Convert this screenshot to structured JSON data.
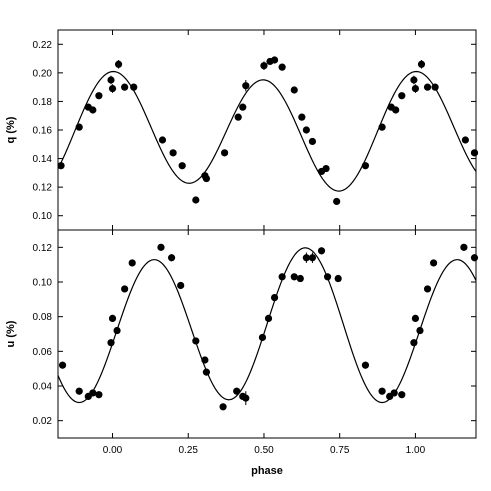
{
  "chart_data": [
    {
      "type": "scatter",
      "panel": "top",
      "ylabel": "q (%)",
      "xlim": [
        -0.18,
        1.2
      ],
      "ylim": [
        0.09,
        0.23
      ],
      "xticks": [
        0.0,
        0.25,
        0.5,
        0.75,
        1.0
      ],
      "yticks": [
        0.1,
        0.12,
        0.14,
        0.16,
        0.18,
        0.2,
        0.22
      ],
      "ytick_labels": [
        "0.10",
        "0.12",
        "0.14",
        "0.16",
        "0.18",
        "0.20",
        "0.22"
      ],
      "grid": false,
      "model": {
        "kind": "double-wave",
        "mean": 0.159,
        "a1": 0.004,
        "phi1": 0.12,
        "a2": 0.039,
        "phi2": 0.0
      },
      "series": [
        {
          "marker": "filled-circle",
          "error_bars": true,
          "points": [
            {
              "x": -0.17,
              "y": 0.135,
              "err": 0.002
            },
            {
              "x": -0.11,
              "y": 0.162,
              "err": 0.002
            },
            {
              "x": -0.08,
              "y": 0.176,
              "err": 0.002
            },
            {
              "x": -0.065,
              "y": 0.174,
              "err": 0.002
            },
            {
              "x": -0.045,
              "y": 0.184,
              "err": 0.002
            },
            {
              "x": -0.005,
              "y": 0.195,
              "err": 0.003
            },
            {
              "x": 0.0,
              "y": 0.189,
              "err": 0.003
            },
            {
              "x": 0.02,
              "y": 0.206,
              "err": 0.003
            },
            {
              "x": 0.04,
              "y": 0.19,
              "err": 0.002
            },
            {
              "x": 0.07,
              "y": 0.19,
              "err": 0.002
            },
            {
              "x": 0.165,
              "y": 0.153,
              "err": 0.002
            },
            {
              "x": 0.2,
              "y": 0.144,
              "err": 0.002
            },
            {
              "x": 0.23,
              "y": 0.135,
              "err": 0.002
            },
            {
              "x": 0.275,
              "y": 0.111,
              "err": 0.002
            },
            {
              "x": 0.305,
              "y": 0.128,
              "err": 0.002
            },
            {
              "x": 0.31,
              "y": 0.126,
              "err": 0.002
            },
            {
              "x": 0.37,
              "y": 0.144,
              "err": 0.002
            },
            {
              "x": 0.415,
              "y": 0.169,
              "err": 0.002
            },
            {
              "x": 0.43,
              "y": 0.176,
              "err": 0.002
            },
            {
              "x": 0.44,
              "y": 0.191,
              "err": 0.004
            },
            {
              "x": 0.5,
              "y": 0.205,
              "err": 0.003
            },
            {
              "x": 0.52,
              "y": 0.208,
              "err": 0.002
            },
            {
              "x": 0.535,
              "y": 0.209,
              "err": 0.002
            },
            {
              "x": 0.56,
              "y": 0.204,
              "err": 0.002
            },
            {
              "x": 0.6,
              "y": 0.188,
              "err": 0.002
            },
            {
              "x": 0.625,
              "y": 0.169,
              "err": 0.002
            },
            {
              "x": 0.64,
              "y": 0.16,
              "err": 0.002
            },
            {
              "x": 0.66,
              "y": 0.152,
              "err": 0.002
            },
            {
              "x": 0.69,
              "y": 0.131,
              "err": 0.002
            },
            {
              "x": 0.705,
              "y": 0.133,
              "err": 0.002
            },
            {
              "x": 0.74,
              "y": 0.11,
              "err": 0.002
            },
            {
              "x": 0.835,
              "y": 0.135,
              "err": 0.002
            },
            {
              "x": 0.89,
              "y": 0.162,
              "err": 0.002
            },
            {
              "x": 0.92,
              "y": 0.176,
              "err": 0.002
            },
            {
              "x": 0.935,
              "y": 0.174,
              "err": 0.002
            },
            {
              "x": 0.955,
              "y": 0.184,
              "err": 0.002
            },
            {
              "x": 0.995,
              "y": 0.195,
              "err": 0.003
            },
            {
              "x": 1.0,
              "y": 0.189,
              "err": 0.003
            },
            {
              "x": 1.02,
              "y": 0.206,
              "err": 0.003
            },
            {
              "x": 1.04,
              "y": 0.19,
              "err": 0.002
            },
            {
              "x": 1.065,
              "y": 0.19,
              "err": 0.002
            },
            {
              "x": 1.165,
              "y": 0.153,
              "err": 0.002
            },
            {
              "x": 1.195,
              "y": 0.144,
              "err": 0.002
            }
          ]
        }
      ]
    },
    {
      "type": "scatter",
      "panel": "bottom",
      "xlabel": "phase",
      "ylabel": "u (%)",
      "xlim": [
        -0.18,
        1.2
      ],
      "ylim": [
        0.01,
        0.13
      ],
      "xticks": [
        0.0,
        0.25,
        0.5,
        0.75,
        1.0
      ],
      "xtick_labels": [
        "0.00",
        "0.25",
        "0.50",
        "0.75",
        "1.00"
      ],
      "yticks": [
        0.02,
        0.04,
        0.06,
        0.08,
        0.1,
        0.12
      ],
      "ytick_labels": [
        "0.02",
        "0.04",
        "0.06",
        "0.08",
        "0.10",
        "0.12"
      ],
      "grid": false,
      "model": {
        "kind": "double-wave",
        "mean": 0.0738,
        "a1": 0.0035,
        "phi1": 0.6,
        "a2": 0.0425,
        "phi2": 0.137
      },
      "series": [
        {
          "marker": "filled-circle",
          "error_bars": true,
          "points": [
            {
              "x": -0.165,
              "y": 0.052,
              "err": 0.002
            },
            {
              "x": -0.11,
              "y": 0.037,
              "err": 0.002
            },
            {
              "x": -0.08,
              "y": 0.034,
              "err": 0.002
            },
            {
              "x": -0.065,
              "y": 0.036,
              "err": 0.002
            },
            {
              "x": -0.045,
              "y": 0.035,
              "err": 0.002
            },
            {
              "x": -0.005,
              "y": 0.065,
              "err": 0.002
            },
            {
              "x": 0.0,
              "y": 0.079,
              "err": 0.002
            },
            {
              "x": 0.015,
              "y": 0.072,
              "err": 0.002
            },
            {
              "x": 0.04,
              "y": 0.096,
              "err": 0.002
            },
            {
              "x": 0.065,
              "y": 0.111,
              "err": 0.002
            },
            {
              "x": 0.16,
              "y": 0.12,
              "err": 0.002
            },
            {
              "x": 0.195,
              "y": 0.114,
              "err": 0.002
            },
            {
              "x": 0.225,
              "y": 0.098,
              "err": 0.002
            },
            {
              "x": 0.275,
              "y": 0.066,
              "err": 0.002
            },
            {
              "x": 0.305,
              "y": 0.055,
              "err": 0.002
            },
            {
              "x": 0.31,
              "y": 0.048,
              "err": 0.002
            },
            {
              "x": 0.365,
              "y": 0.028,
              "err": 0.002
            },
            {
              "x": 0.41,
              "y": 0.037,
              "err": 0.002
            },
            {
              "x": 0.43,
              "y": 0.034,
              "err": 0.002
            },
            {
              "x": 0.44,
              "y": 0.033,
              "err": 0.004
            },
            {
              "x": 0.495,
              "y": 0.068,
              "err": 0.002
            },
            {
              "x": 0.515,
              "y": 0.079,
              "err": 0.002
            },
            {
              "x": 0.535,
              "y": 0.091,
              "err": 0.002
            },
            {
              "x": 0.56,
              "y": 0.103,
              "err": 0.002
            },
            {
              "x": 0.6,
              "y": 0.103,
              "err": 0.002
            },
            {
              "x": 0.62,
              "y": 0.102,
              "err": 0.002
            },
            {
              "x": 0.64,
              "y": 0.114,
              "err": 0.003
            },
            {
              "x": 0.66,
              "y": 0.114,
              "err": 0.003
            },
            {
              "x": 0.69,
              "y": 0.118,
              "err": 0.002
            },
            {
              "x": 0.71,
              "y": 0.103,
              "err": 0.002
            },
            {
              "x": 0.745,
              "y": 0.102,
              "err": 0.002
            },
            {
              "x": 0.835,
              "y": 0.052,
              "err": 0.002
            },
            {
              "x": 0.89,
              "y": 0.037,
              "err": 0.002
            },
            {
              "x": 0.915,
              "y": 0.034,
              "err": 0.002
            },
            {
              "x": 0.93,
              "y": 0.036,
              "err": 0.002
            },
            {
              "x": 0.955,
              "y": 0.035,
              "err": 0.002
            },
            {
              "x": 0.995,
              "y": 0.065,
              "err": 0.002
            },
            {
              "x": 1.0,
              "y": 0.079,
              "err": 0.002
            },
            {
              "x": 1.015,
              "y": 0.072,
              "err": 0.002
            },
            {
              "x": 1.04,
              "y": 0.096,
              "err": 0.002
            },
            {
              "x": 1.06,
              "y": 0.111,
              "err": 0.002
            },
            {
              "x": 1.16,
              "y": 0.12,
              "err": 0.002
            },
            {
              "x": 1.195,
              "y": 0.114,
              "err": 0.002
            }
          ]
        }
      ]
    }
  ]
}
